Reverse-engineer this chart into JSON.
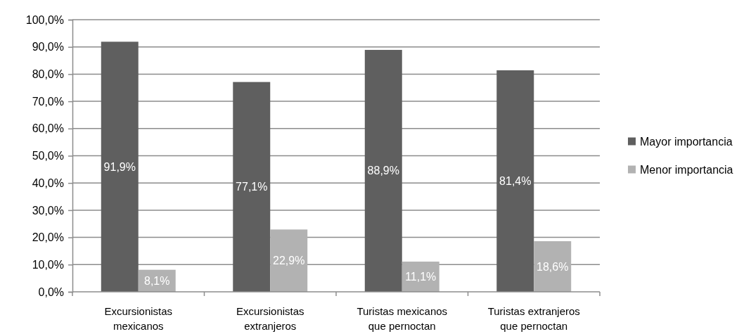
{
  "chart_data": {
    "type": "bar",
    "categories": [
      "Excursionistas mexicanos",
      "Excursionistas extranjeros",
      "Turistas mexicanos que pernoctan",
      "Turistas extranjeros que pernoctan"
    ],
    "series": [
      {
        "name": "Mayor importancia",
        "color": "#5f5f5f",
        "values": [
          91.9,
          77.1,
          88.9,
          81.4
        ]
      },
      {
        "name": "Menor importancia",
        "color": "#b2b2b2",
        "values": [
          8.1,
          22.9,
          11.1,
          18.6
        ]
      }
    ],
    "ylim": [
      0,
      100
    ],
    "yticks": [
      {
        "value": 0,
        "label": "0,0%"
      },
      {
        "value": 10,
        "label": "10,0%"
      },
      {
        "value": 20,
        "label": "20,0%"
      },
      {
        "value": 30,
        "label": "30,0%"
      },
      {
        "value": 40,
        "label": "40,0%"
      },
      {
        "value": 50,
        "label": "50,0%"
      },
      {
        "value": 60,
        "label": "60,0%"
      },
      {
        "value": 70,
        "label": "70,0%"
      },
      {
        "value": 80,
        "label": "80,0%"
      },
      {
        "value": 90,
        "label": "90,0%"
      },
      {
        "value": 100,
        "label": "100,0%"
      }
    ],
    "value_labels": [
      [
        "91,9%",
        "77,1%",
        "88,9%",
        "81,4%"
      ],
      [
        "8,1%",
        "22,9%",
        "11,1%",
        "18,6%"
      ]
    ],
    "grid": "y",
    "legend": "right"
  }
}
